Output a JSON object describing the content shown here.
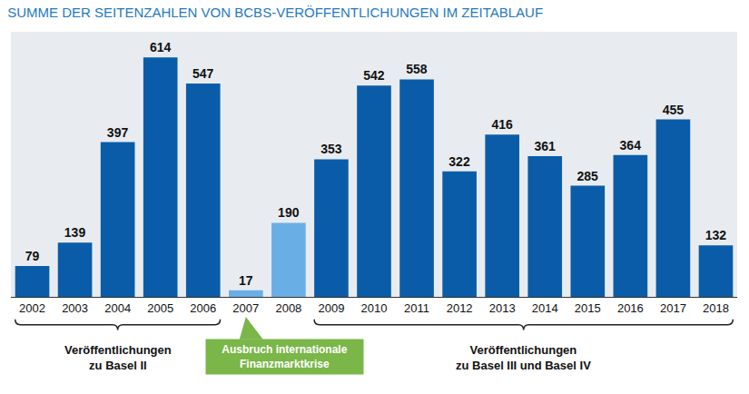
{
  "chart_data": {
    "type": "bar",
    "title": "SUMME DER SEITENZAHLEN VON BCBS-VERÖFFENTLICHUNGEN IM ZEITABLAUF",
    "categories": [
      "2002",
      "2003",
      "2004",
      "2005",
      "2006",
      "2007",
      "2008",
      "2009",
      "2010",
      "2011",
      "2012",
      "2013",
      "2014",
      "2015",
      "2016",
      "2017",
      "2018"
    ],
    "values": [
      79,
      139,
      397,
      614,
      547,
      17,
      190,
      353,
      542,
      558,
      322,
      416,
      361,
      285,
      364,
      455,
      132
    ],
    "colors": [
      "#0b5ca8",
      "#0b5ca8",
      "#0b5ca8",
      "#0b5ca8",
      "#0b5ca8",
      "#6aaee6",
      "#6aaee6",
      "#0b5ca8",
      "#0b5ca8",
      "#0b5ca8",
      "#0b5ca8",
      "#0b5ca8",
      "#0b5ca8",
      "#0b5ca8",
      "#0b5ca8",
      "#0b5ca8",
      "#0b5ca8"
    ],
    "ylim": [
      0,
      680
    ],
    "grid": false,
    "data_labels": true,
    "tick_labels": "x",
    "annotations": [
      {
        "type": "brace",
        "lines": [
          "Veröffentlichungen",
          "zu Basel II"
        ],
        "from": "2002",
        "to": "2006"
      },
      {
        "type": "callout",
        "lines": [
          "Ausbruch internationale",
          "Finanzmarktkrise"
        ],
        "from": "2007",
        "to": "2008"
      },
      {
        "type": "brace",
        "lines": [
          "Veröffentlichungen",
          "zu Basel III und Basel IV"
        ],
        "from": "2009",
        "to": "2018"
      }
    ]
  }
}
